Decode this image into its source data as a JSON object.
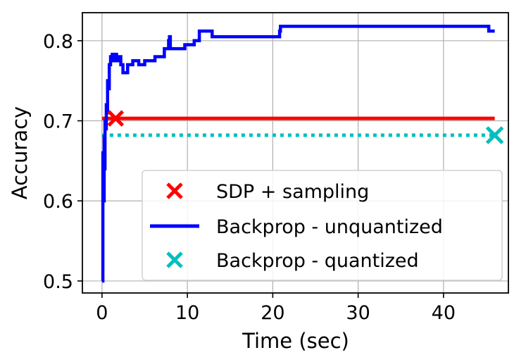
{
  "chart_data": {
    "type": "line",
    "xlabel": "Time (sec)",
    "ylabel": "Accuracy",
    "xlim": [
      -2.3,
      47.6
    ],
    "ylim": [
      0.485,
      0.835
    ],
    "xticks": [
      0,
      10,
      20,
      30,
      40
    ],
    "xtick_labels": [
      "0",
      "10",
      "20",
      "30",
      "40"
    ],
    "yticks": [
      0.5,
      0.6,
      0.7,
      0.8
    ],
    "ytick_labels": [
      "0.5",
      "0.6",
      "0.7",
      "0.8"
    ],
    "grid": true,
    "legend_position": "lower-right",
    "series": [
      {
        "name": "SDP + sampling",
        "style": "solid-line-with-x-marker",
        "color": "#ff0000",
        "line": {
          "x": [
            0,
            46
          ],
          "y": [
            0.703,
            0.703
          ]
        },
        "marker": {
          "x": 1.6,
          "y": 0.703
        }
      },
      {
        "name": "Backprop - unquantized",
        "style": "solid-line",
        "color": "#0000ff",
        "x": [
          0,
          0.1,
          0.2,
          0.25,
          0.3,
          0.35,
          0.45,
          0.5,
          0.55,
          0.65,
          0.75,
          0.85,
          1.0,
          1.1,
          1.2,
          1.4,
          1.55,
          1.6,
          1.7,
          1.9,
          2.0,
          2.2,
          2.4,
          2.45,
          2.9,
          3.0,
          3.5,
          3.6,
          4.2,
          4.3,
          5.0,
          5.1,
          6.2,
          6.3,
          7.3,
          7.4,
          7.8,
          7.9,
          8.0,
          8.1,
          9.6,
          9.7,
          10.7,
          10.8,
          11.3,
          11.4,
          12.8,
          12.9,
          20.8,
          20.9,
          45.2,
          45.3,
          46.0
        ],
        "y": [
          0.5,
          0.66,
          0.6,
          0.68,
          0.64,
          0.7,
          0.69,
          0.72,
          0.71,
          0.75,
          0.74,
          0.77,
          0.78,
          0.775,
          0.783,
          0.775,
          0.78,
          0.783,
          0.775,
          0.78,
          0.78,
          0.77,
          0.77,
          0.76,
          0.76,
          0.77,
          0.77,
          0.775,
          0.775,
          0.77,
          0.775,
          0.775,
          0.78,
          0.78,
          0.79,
          0.79,
          0.8,
          0.805,
          0.79,
          0.79,
          0.79,
          0.795,
          0.795,
          0.8,
          0.8,
          0.812,
          0.812,
          0.805,
          0.812,
          0.818,
          0.818,
          0.812,
          0.812
        ]
      },
      {
        "name": "Backprop - quantized",
        "style": "dotted-line-with-x-marker",
        "color": "#00bfbf",
        "line": {
          "x": [
            0,
            46
          ],
          "y": [
            0.682,
            0.682
          ]
        },
        "marker": {
          "x": 46.0,
          "y": 0.682
        }
      }
    ]
  }
}
